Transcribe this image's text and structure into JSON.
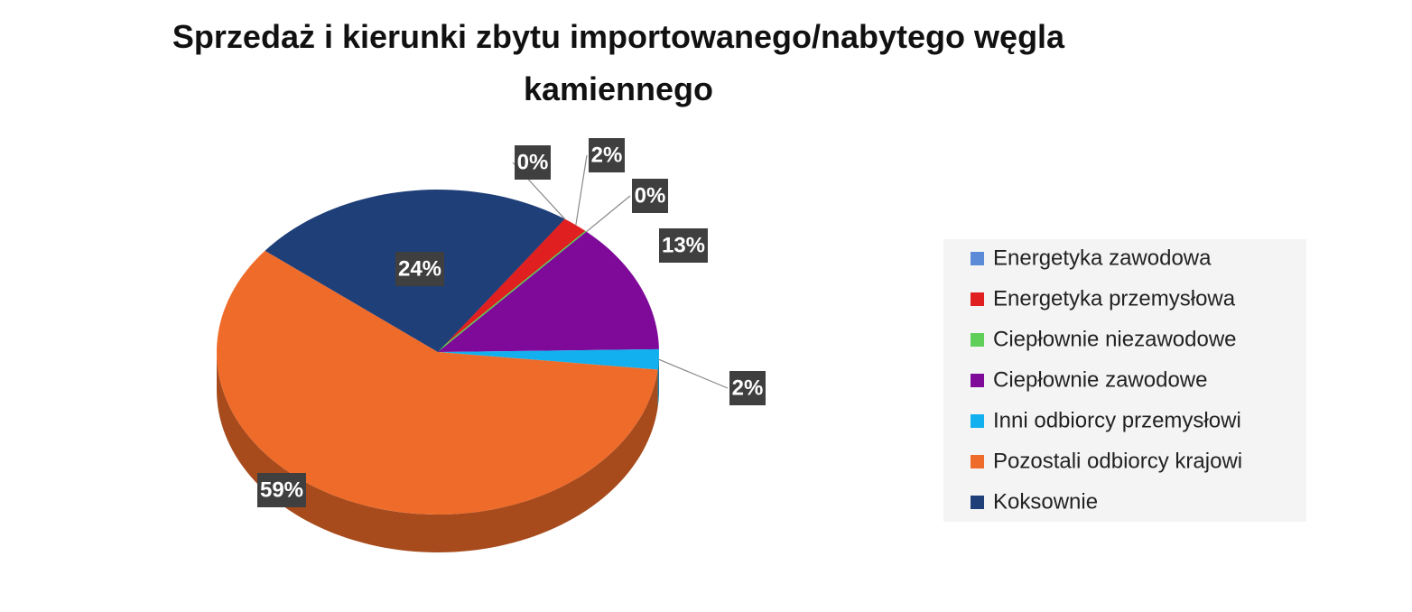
{
  "chart_data": {
    "type": "pie",
    "title": "Sprzedaż i kierunki zbytu importowanego/nabytego węgla kamiennego",
    "categories": [
      "Energetyka zawodowa",
      "Energetyka przemysłowa",
      "Ciepłownie niezawodowe",
      "Ciepłownie zawodowe",
      "Inni odbiorcy przemysłowi",
      "Pozostali odbiorcy krajowi",
      "Koksownie"
    ],
    "values": [
      0,
      2,
      0,
      13,
      2,
      59,
      24
    ],
    "value_labels": [
      "0%",
      "2%",
      "0%",
      "13%",
      "2%",
      "59%",
      "24%"
    ],
    "colors": [
      "#5b8bd6",
      "#e02020",
      "#5fcf5a",
      "#7f0a9a",
      "#12b0ee",
      "#ef6b2a",
      "#1f3f78"
    ],
    "legend": "right"
  }
}
